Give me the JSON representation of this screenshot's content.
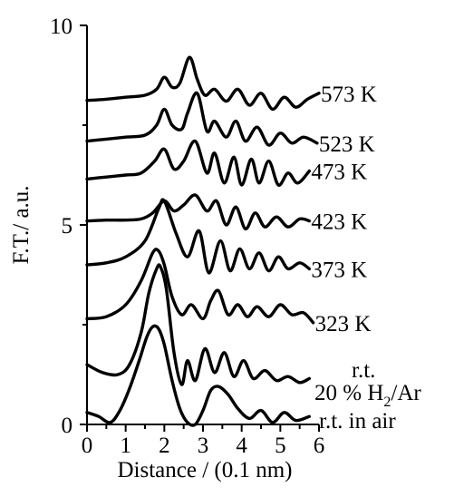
{
  "chart_data": {
    "type": "line",
    "xlabel": "Distance / (0.1 nm)",
    "ylabel": "F.T./ a.u.",
    "xlim": [
      0,
      6
    ],
    "ylim": [
      0,
      10
    ],
    "xticks": [
      "0",
      "1",
      "2",
      "3",
      "4",
      "5",
      "6"
    ],
    "yticks": [
      "0",
      "5",
      "10"
    ],
    "grid": false,
    "series": [
      {
        "name": "573 K",
        "label": "573 K",
        "x": [
          0,
          0.5,
          1.0,
          1.5,
          1.8,
          2.0,
          2.2,
          2.4,
          2.65,
          2.85,
          3.05,
          3.3,
          3.6,
          3.9,
          4.2,
          4.5,
          4.8,
          5.1,
          5.4,
          5.7,
          6.0
        ],
        "y": [
          8.12,
          8.15,
          8.2,
          8.25,
          8.4,
          8.7,
          8.45,
          8.55,
          9.2,
          8.65,
          8.25,
          8.4,
          8.1,
          8.4,
          8.0,
          8.3,
          7.9,
          8.2,
          7.95,
          8.15,
          8.3
        ]
      },
      {
        "name": "523 K",
        "label": "523 K",
        "x": [
          0,
          0.5,
          1.0,
          1.5,
          1.8,
          2.0,
          2.2,
          2.45,
          2.6,
          2.85,
          3.1,
          3.3,
          3.6,
          3.85,
          4.1,
          4.4,
          4.7,
          5.0,
          5.3,
          5.6,
          5.95
        ],
        "y": [
          7.1,
          7.15,
          7.2,
          7.25,
          7.5,
          7.9,
          7.5,
          7.4,
          7.8,
          8.3,
          7.35,
          7.6,
          7.2,
          7.6,
          7.1,
          7.45,
          7.0,
          7.3,
          7.05,
          7.2,
          7.05
        ]
      },
      {
        "name": "473 K",
        "label": "473 K",
        "x": [
          0,
          0.5,
          1.0,
          1.4,
          1.75,
          2.0,
          2.25,
          2.5,
          2.8,
          3.1,
          3.3,
          3.55,
          3.8,
          4.0,
          4.25,
          4.45,
          4.7,
          4.95,
          5.2,
          5.45,
          5.75
        ],
        "y": [
          6.15,
          6.2,
          6.25,
          6.3,
          6.6,
          6.9,
          6.4,
          6.6,
          7.1,
          6.3,
          6.8,
          6.05,
          6.7,
          6.0,
          6.65,
          6.05,
          6.6,
          6.0,
          6.3,
          6.05,
          6.35
        ]
      },
      {
        "name": "423 K",
        "label": "423 K",
        "x": [
          0,
          0.5,
          1.0,
          1.4,
          1.7,
          2.0,
          2.25,
          2.5,
          2.8,
          3.1,
          3.35,
          3.6,
          3.85,
          4.1,
          4.35,
          4.6,
          4.9,
          5.2,
          5.5,
          5.75
        ],
        "y": [
          5.1,
          5.12,
          5.12,
          5.15,
          5.3,
          5.6,
          5.35,
          5.5,
          5.75,
          5.35,
          5.6,
          5.0,
          5.45,
          4.9,
          5.3,
          4.95,
          5.2,
          4.95,
          5.15,
          5.1
        ]
      },
      {
        "name": "373 K",
        "label": "373 K",
        "x": [
          0,
          0.5,
          1.0,
          1.5,
          1.85,
          2.0,
          2.3,
          2.6,
          2.9,
          3.15,
          3.45,
          3.7,
          3.95,
          4.2,
          4.45,
          4.7,
          4.95,
          5.2,
          5.5,
          5.75
        ],
        "y": [
          4.0,
          4.05,
          4.2,
          4.6,
          5.4,
          5.6,
          4.8,
          4.2,
          4.85,
          3.8,
          4.6,
          3.85,
          4.4,
          3.9,
          4.3,
          3.85,
          4.2,
          3.9,
          4.05,
          3.9
        ]
      },
      {
        "name": "323 K",
        "label": "323 K",
        "x": [
          0,
          0.5,
          1.0,
          1.4,
          1.7,
          1.85,
          2.0,
          2.2,
          2.45,
          2.7,
          3.0,
          3.2,
          3.4,
          3.65,
          3.9,
          4.15,
          4.4,
          4.7,
          5.0,
          5.3,
          5.6,
          5.85
        ],
        "y": [
          2.65,
          2.7,
          3.0,
          3.6,
          4.3,
          4.35,
          4.0,
          3.2,
          2.75,
          3.0,
          2.65,
          3.1,
          3.35,
          2.75,
          3.0,
          2.7,
          2.95,
          2.7,
          3.0,
          2.75,
          2.8,
          2.55
        ]
      },
      {
        "name": "r.t. 20 % H2/Ar",
        "label": "r.t.",
        "x": [
          0,
          0.4,
          0.8,
          1.1,
          1.4,
          1.6,
          1.8,
          1.9,
          2.05,
          2.25,
          2.45,
          2.6,
          2.8,
          3.05,
          3.3,
          3.55,
          3.8,
          4.05,
          4.3,
          4.6,
          4.9,
          5.2,
          5.5,
          5.75
        ],
        "y": [
          1.5,
          1.3,
          1.25,
          1.5,
          2.3,
          3.3,
          3.9,
          3.95,
          3.4,
          1.8,
          1.0,
          1.6,
          1.1,
          1.9,
          1.3,
          1.8,
          1.2,
          1.6,
          1.15,
          1.35,
          1.1,
          1.2,
          1.05,
          1.15
        ]
      },
      {
        "name": "r.t. in air",
        "label": "r.t. in air",
        "x": [
          0,
          0.3,
          0.6,
          0.85,
          1.1,
          1.35,
          1.55,
          1.7,
          1.85,
          2.0,
          2.2,
          2.4,
          2.6,
          2.8,
          3.0,
          3.2,
          3.4,
          3.65,
          3.9,
          4.2,
          4.5,
          4.8,
          5.1,
          5.4,
          5.75
        ],
        "y": [
          0.3,
          0.2,
          0.05,
          0.35,
          0.9,
          1.6,
          2.2,
          2.45,
          2.4,
          2.0,
          1.1,
          0.4,
          0.05,
          0.0,
          0.35,
          0.85,
          0.95,
          0.75,
          0.4,
          0.15,
          0.35,
          0.05,
          0.3,
          0.1,
          0.2
        ]
      }
    ],
    "annotations": {
      "h2_prefix": "20 % H",
      "h2_subscript": "2",
      "h2_suffix": "/Ar"
    }
  }
}
